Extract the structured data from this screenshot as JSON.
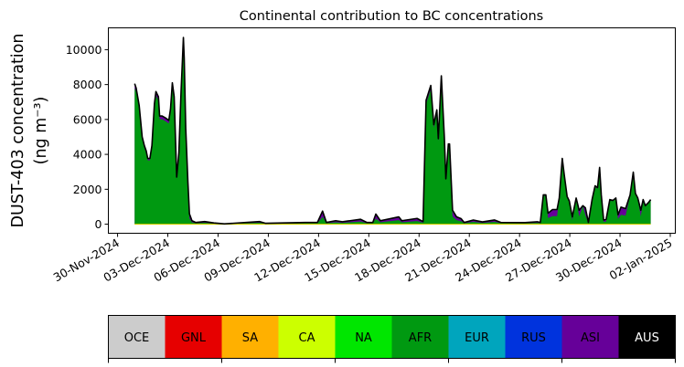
{
  "chart_data": {
    "type": "area",
    "stacked": true,
    "title": "Continental contribution to BC concentrations",
    "ylabel_line1": "DUST-403 concentration",
    "ylabel_line2": "(ng m⁻³)",
    "xlabel": "",
    "x_unit": "days since 30-Nov-2024 00:00",
    "xlim": [
      -0.55,
      33.3
    ],
    "ylim": [
      -520,
      11250
    ],
    "yticks": [
      0,
      2000,
      4000,
      6000,
      8000,
      10000
    ],
    "ytick_labels": [
      "0",
      "2000",
      "4000",
      "6000",
      "8000",
      "10000"
    ],
    "xticks": [
      0,
      3,
      6,
      9,
      12,
      15,
      18,
      21,
      24,
      27,
      30,
      33
    ],
    "xtick_labels": [
      "30-Nov-2024",
      "03-Dec-2024",
      "06-Dec-2024",
      "09-Dec-2024",
      "12-Dec-2024",
      "15-Dec-2024",
      "18-Dec-2024",
      "21-Dec-2024",
      "24-Dec-2024",
      "27-Dec-2024",
      "30-Dec-2024",
      "02-Jan-2025"
    ],
    "grid": false,
    "x": [
      1.02,
      1.11,
      1.29,
      1.47,
      1.6,
      1.71,
      1.8,
      1.93,
      2.05,
      2.2,
      2.29,
      2.44,
      2.51,
      2.66,
      2.84,
      3.06,
      3.16,
      3.27,
      3.38,
      3.53,
      3.66,
      3.79,
      3.87,
      3.93,
      3.98,
      4.07,
      4.2,
      4.29,
      4.44,
      4.66,
      5.2,
      5.75,
      6.38,
      8.47,
      8.84,
      11.2,
      11.93,
      12.24,
      12.47,
      13.02,
      13.42,
      14.51,
      14.88,
      15.24,
      15.42,
      15.69,
      16.79,
      16.97,
      17.88,
      18.24,
      18.42,
      18.7,
      18.88,
      19.06,
      19.15,
      19.33,
      19.51,
      19.6,
      19.75,
      19.82,
      20.0,
      20.24,
      20.51,
      20.69,
      21.24,
      21.78,
      22.51,
      22.88,
      24.33,
      25.06,
      25.24,
      25.42,
      25.57,
      25.7,
      25.97,
      26.24,
      26.37,
      26.55,
      26.66,
      26.84,
      26.97,
      27.15,
      27.38,
      27.56,
      27.78,
      27.93,
      28.11,
      28.33,
      28.51,
      28.66,
      28.78,
      28.88,
      29.02,
      29.17,
      29.39,
      29.57,
      29.75,
      29.88,
      30.06,
      30.33,
      30.6,
      30.79,
      30.92,
      31.06,
      31.24,
      31.38,
      31.51,
      31.7,
      31.83
    ],
    "total": [
      8050,
      7800,
      6800,
      5000,
      4500,
      4200,
      3770,
      3770,
      4500,
      6900,
      7600,
      7300,
      6200,
      6200,
      6100,
      5950,
      6600,
      8100,
      7300,
      2700,
      4100,
      7600,
      9350,
      10700,
      9500,
      5500,
      2400,
      600,
      200,
      100,
      150,
      70,
      20,
      150,
      50,
      100,
      100,
      750,
      100,
      200,
      140,
      280,
      100,
      100,
      580,
      200,
      420,
      200,
      330,
      150,
      7100,
      7950,
      5700,
      6550,
      4900,
      8500,
      5000,
      2600,
      4600,
      4600,
      800,
      420,
      320,
      100,
      240,
      130,
      240,
      100,
      90,
      140,
      100,
      1680,
      1680,
      630,
      840,
      840,
      1500,
      3770,
      2900,
      1590,
      1330,
      420,
      1500,
      800,
      1060,
      940,
      100,
      1410,
      2200,
      2100,
      3250,
      1680,
      240,
      280,
      1410,
      1360,
      1500,
      540,
      980,
      890,
      1680,
      2980,
      1760,
      1500,
      800,
      1410,
      1060,
      1240,
      1410
    ],
    "series": [
      {
        "name": "AFR",
        "color": "#009911",
        "share_high": 0.97,
        "share_low": 0.55
      },
      {
        "name": "ASI",
        "color": "#660099",
        "role": "remainder"
      }
    ],
    "total_line_color": "#000000",
    "legend": {
      "placement": "bottom colorbar",
      "entries": [
        {
          "label": "OCE",
          "color": "#cccccc"
        },
        {
          "label": "GNL",
          "color": "#e60000"
        },
        {
          "label": "SA",
          "color": "#ffb000"
        },
        {
          "label": "CA",
          "color": "#ccff00"
        },
        {
          "label": "NA",
          "color": "#00e600"
        },
        {
          "label": "AFR",
          "color": "#009911"
        },
        {
          "label": "EUR",
          "color": "#00a5bd"
        },
        {
          "label": "RUS",
          "color": "#0033dd"
        },
        {
          "label": "ASI",
          "color": "#660099"
        },
        {
          "label": "AUS",
          "color": "#000000"
        }
      ]
    }
  }
}
